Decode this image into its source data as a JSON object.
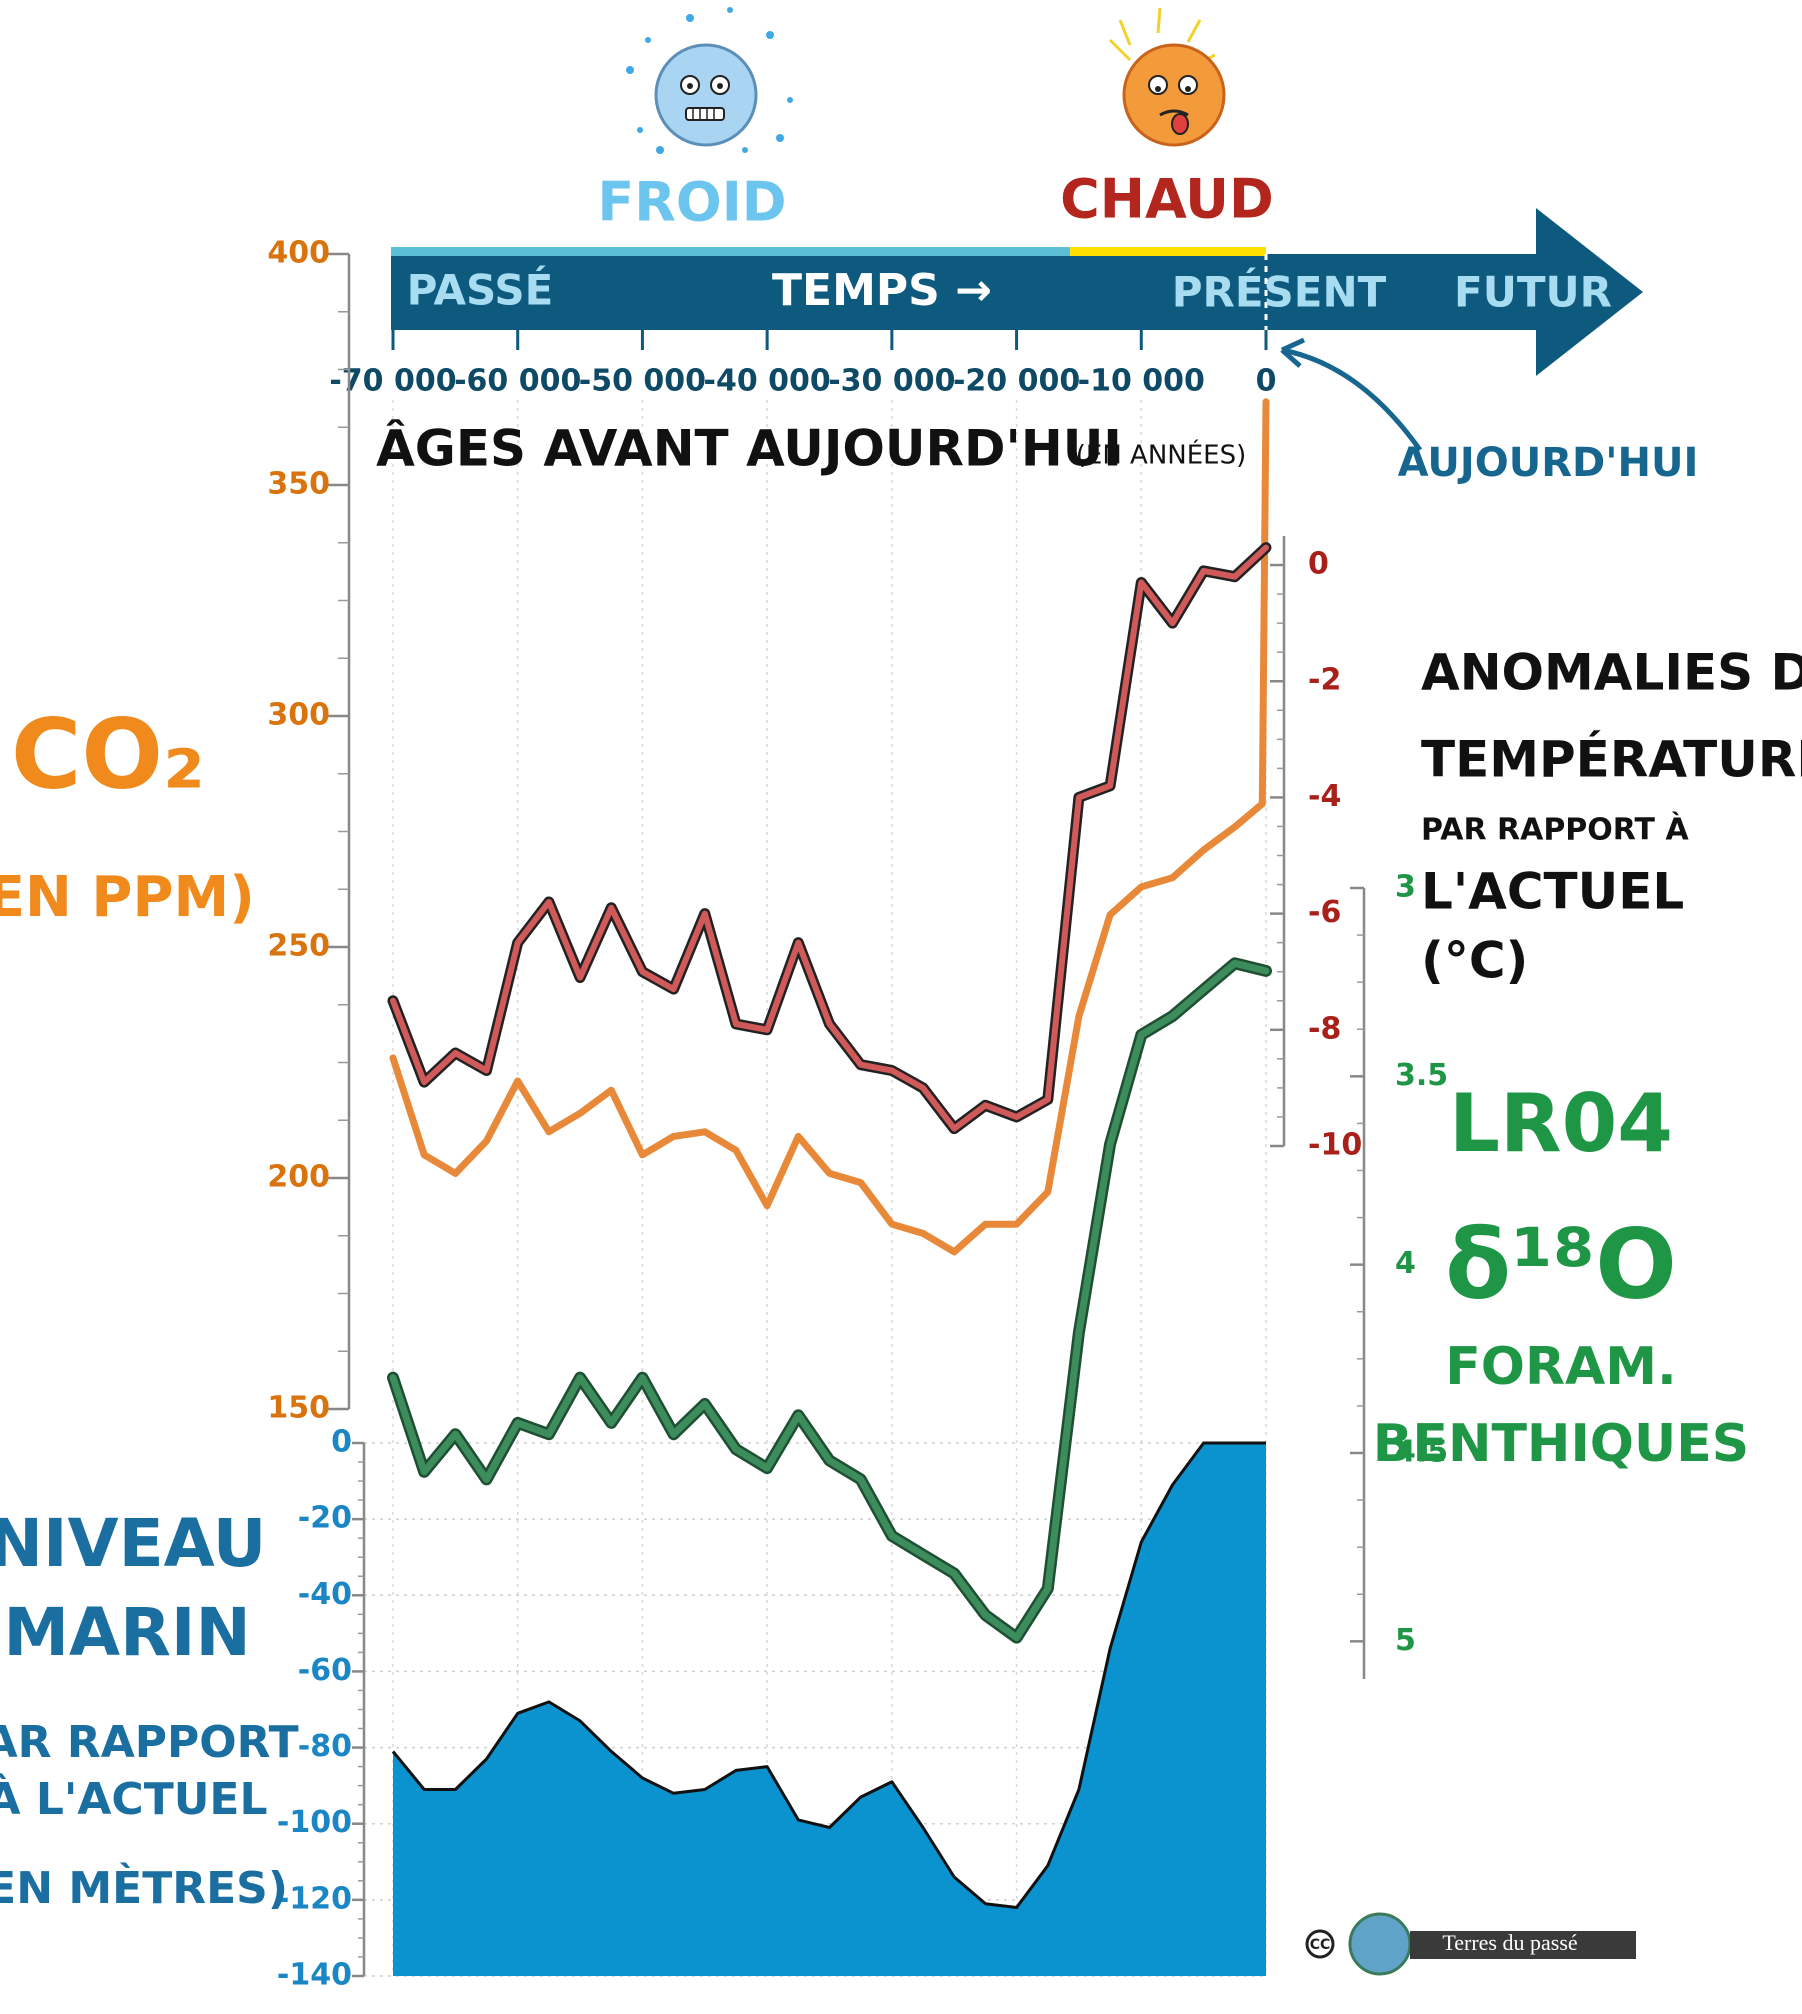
{
  "climate": {
    "cold": "FROID",
    "hot": "CHAUD"
  },
  "timeline": {
    "past": "PASSÉ",
    "time": "TEMPS →",
    "present": "PRÉSENT",
    "future": "FUTUR",
    "today": "AUJOURD'HUI"
  },
  "x_axis": {
    "label": "ÂGES AVANT AUJOURD'HUI",
    "unit": "(EN ANNÉES)",
    "xlim": [
      -70000,
      0
    ],
    "xticks": [
      {
        "value": -70000,
        "label": "-70 000"
      },
      {
        "value": -60000,
        "label": "-60 000"
      },
      {
        "value": -50000,
        "label": "-50 000"
      },
      {
        "value": -40000,
        "label": "-40 000"
      },
      {
        "value": -30000,
        "label": "-30 000"
      },
      {
        "value": -20000,
        "label": "-20 000"
      },
      {
        "value": -10000,
        "label": "-10 000"
      },
      0
    ],
    "grid": true
  },
  "chart_data": [
    {
      "type": "line",
      "title_lines": [
        "CO₂",
        "(EN PPM)"
      ],
      "color": "#e8893a",
      "ylim": [
        150,
        400
      ],
      "yticks": [
        150,
        200,
        250,
        300,
        350,
        400
      ],
      "x": [
        -70000,
        -67500,
        -65000,
        -62500,
        -60000,
        -57500,
        -55000,
        -52500,
        -50000,
        -47500,
        -45000,
        -42500,
        -40000,
        -37500,
        -35000,
        -32500,
        -30000,
        -27500,
        -25000,
        -22500,
        -20000,
        -17500,
        -15000,
        -12500,
        -10000,
        -7500,
        -5000,
        -2500,
        -300,
        0
      ],
      "values": [
        226,
        205,
        201,
        208,
        221,
        210,
        214,
        219,
        205,
        209,
        210,
        206,
        194,
        209,
        201,
        199,
        190,
        188,
        184,
        190,
        190,
        197,
        235,
        257,
        263,
        265,
        271,
        276,
        281,
        368
      ]
    },
    {
      "type": "line",
      "title_lines": [
        "ANOMALIES DE",
        "TEMPÉRATURES",
        "PAR RAPPORT À",
        "L'ACTUEL",
        "(°C)"
      ],
      "color": "#d05a5a",
      "ylim": [
        -10,
        0.5
      ],
      "yticks": [
        0,
        -2,
        -4,
        -6,
        -8,
        -10
      ],
      "x": [
        -70000,
        -67500,
        -65000,
        -62500,
        -60000,
        -57500,
        -55000,
        -52500,
        -50000,
        -47500,
        -45000,
        -42500,
        -40000,
        -37500,
        -35000,
        -32500,
        -30000,
        -27500,
        -25000,
        -22500,
        -20000,
        -17500,
        -15000,
        -12500,
        -10000,
        -7500,
        -5000,
        -2500,
        0
      ],
      "values": [
        -7.5,
        -8.9,
        -8.4,
        -8.7,
        -6.5,
        -5.8,
        -7.1,
        -5.9,
        -7.0,
        -7.3,
        -6.0,
        -7.9,
        -8.0,
        -6.5,
        -7.9,
        -8.6,
        -8.7,
        -9.0,
        -9.7,
        -9.3,
        -9.5,
        -9.2,
        -4.0,
        -3.8,
        -0.3,
        -1.0,
        -0.1,
        -0.2,
        0.3
      ]
    },
    {
      "type": "line",
      "title_lines": [
        "LR04",
        "δ¹⁸O",
        "FORAM.",
        "BENTHIQUES"
      ],
      "color": "#3d8c5c",
      "ylim": [
        3,
        5.1
      ],
      "y_inverted": true,
      "yticks": [
        3,
        3.5,
        4,
        4.5,
        5
      ],
      "x": [
        -70000,
        -67500,
        -65000,
        -62500,
        -60000,
        -57500,
        -55000,
        -52500,
        -50000,
        -47500,
        -45000,
        -42500,
        -40000,
        -37500,
        -35000,
        -32500,
        -30000,
        -27500,
        -25000,
        -22500,
        -20000,
        -17500,
        -15000,
        -12500,
        -10000,
        -7500,
        -5000,
        -2500,
        0
      ],
      "values": [
        4.3,
        4.55,
        4.45,
        4.57,
        4.42,
        4.45,
        4.3,
        4.42,
        4.3,
        4.45,
        4.37,
        4.49,
        4.54,
        4.4,
        4.52,
        4.57,
        4.72,
        4.77,
        4.82,
        4.93,
        4.99,
        4.86,
        4.18,
        3.68,
        3.39,
        3.34,
        3.27,
        3.2,
        3.22
      ]
    },
    {
      "type": "area",
      "title_lines": [
        "NIVEAU",
        "MARIN",
        "PAR RAPPORT",
        "À L'ACTUEL",
        "(EN MÈTRES)"
      ],
      "color": "#0b93cf",
      "ylim": [
        -140,
        0
      ],
      "yticks": [
        0,
        -20,
        -40,
        -60,
        -80,
        -100,
        -120,
        -140
      ],
      "grid": true,
      "x": [
        -70000,
        -67500,
        -65000,
        -62500,
        -60000,
        -57500,
        -55000,
        -52500,
        -50000,
        -47500,
        -45000,
        -42500,
        -40000,
        -37500,
        -35000,
        -32500,
        -30000,
        -27500,
        -25000,
        -22500,
        -20000,
        -17500,
        -15000,
        -12500,
        -10000,
        -7500,
        -5000,
        -2500,
        0
      ],
      "values": [
        -81,
        -91,
        -91,
        -83,
        -71,
        -68,
        -73,
        -81,
        -88,
        -92,
        -91,
        -86,
        -85,
        -99,
        -101,
        -93,
        -89,
        -101,
        -114,
        -121,
        -122,
        -111,
        -91,
        -54,
        -26,
        -11,
        0,
        0,
        0
      ]
    }
  ],
  "credit": {
    "license": "CC",
    "author": "Terres du passé"
  }
}
